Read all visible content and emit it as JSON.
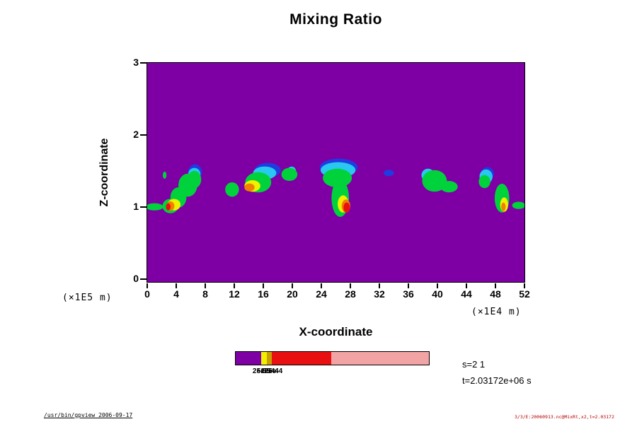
{
  "annotations": {
    "s_label": "s=2 1",
    "t_label": "t=2.03172e+06 s"
  },
  "footer": {
    "left": "/usr/bin/gpview 2006-09-17",
    "right": "3/3/E:20060913.nc@MixRt,x2,t=2.03172"
  },
  "chart_data": {
    "type": "heatmap",
    "title": "Mixing Ratio",
    "xlabel": "X-coordinate",
    "ylabel": "Z-coordinate",
    "x_unit_label": "(×1E4 m)",
    "y_unit_label": "(×1E5 m)",
    "xlim": [
      0,
      52
    ],
    "ylim": [
      0,
      3
    ],
    "x_ticks": [
      0,
      4,
      8,
      12,
      16,
      20,
      24,
      28,
      32,
      36,
      40,
      44,
      48,
      52
    ],
    "y_ticks": [
      0,
      1,
      2,
      3
    ],
    "grid": false,
    "legend_position": "bottom-colorbar",
    "palette": {
      "purple": "#7E00A5",
      "blue": "#1E3CE0",
      "cyan": "#28C8F0",
      "green": "#00D23C",
      "yellow": "#F0F000",
      "olive": "#C8A000",
      "orange": "#F08000",
      "red": "#E81010",
      "pink": "#F2A3A3"
    },
    "colorbar": {
      "segments": [
        {
          "c": "purple",
          "f": 0.131
        },
        {
          "c": "yellow",
          "f": 0.031
        },
        {
          "c": "olive",
          "f": 0.024
        },
        {
          "c": "red",
          "f": 0.309
        },
        {
          "c": "pink",
          "f": 0.505
        }
      ],
      "labels": [
        {
          "text": "2e-5",
          "pos": 0.127
        },
        {
          "text": "5e-5",
          "pos": 0.148
        },
        {
          "text": "1e-4",
          "pos": 0.168
        },
        {
          "text": "2e-4",
          "pos": 0.188
        },
        {
          "text": "5e-4",
          "pos": 0.208
        }
      ]
    },
    "blobs": [
      {
        "x": 1.0,
        "z": 1.0,
        "rx": 1.2,
        "rz": 0.05,
        "c": "green"
      },
      {
        "x": 2.4,
        "z": 1.44,
        "rx": 0.25,
        "rz": 0.05,
        "c": "green"
      },
      {
        "x": 6.6,
        "z": 1.49,
        "rx": 0.95,
        "rz": 0.1,
        "c": "blue"
      },
      {
        "x": 6.5,
        "z": 1.45,
        "rx": 0.85,
        "rz": 0.09,
        "c": "cyan"
      },
      {
        "x": 6.5,
        "z": 1.38,
        "rx": 0.95,
        "rz": 0.12,
        "c": "green"
      },
      {
        "x": 5.6,
        "z": 1.3,
        "rx": 1.3,
        "rz": 0.16,
        "c": "green"
      },
      {
        "x": 4.3,
        "z": 1.13,
        "rx": 1.1,
        "rz": 0.14,
        "c": "green"
      },
      {
        "x": 3.2,
        "z": 1.01,
        "rx": 1.1,
        "rz": 0.1,
        "c": "green"
      },
      {
        "x": 3.7,
        "z": 1.03,
        "rx": 0.9,
        "rz": 0.08,
        "c": "yellow"
      },
      {
        "x": 3.2,
        "z": 1.01,
        "rx": 0.55,
        "rz": 0.065,
        "c": "orange"
      },
      {
        "x": 2.9,
        "z": 1.0,
        "rx": 0.32,
        "rz": 0.05,
        "c": "red"
      },
      {
        "x": 11.7,
        "z": 1.24,
        "rx": 0.95,
        "rz": 0.1,
        "c": "green"
      },
      {
        "x": 16.6,
        "z": 1.51,
        "rx": 1.8,
        "rz": 0.1,
        "c": "blue"
      },
      {
        "x": 16.2,
        "z": 1.47,
        "rx": 1.6,
        "rz": 0.09,
        "c": "cyan"
      },
      {
        "x": 15.3,
        "z": 1.34,
        "rx": 1.8,
        "rz": 0.14,
        "c": "green"
      },
      {
        "x": 14.5,
        "z": 1.29,
        "rx": 1.1,
        "rz": 0.08,
        "c": "yellow"
      },
      {
        "x": 14.1,
        "z": 1.27,
        "rx": 0.7,
        "rz": 0.055,
        "c": "orange"
      },
      {
        "x": 19.9,
        "z": 1.5,
        "rx": 0.6,
        "rz": 0.06,
        "c": "cyan"
      },
      {
        "x": 19.6,
        "z": 1.45,
        "rx": 1.1,
        "rz": 0.09,
        "c": "green"
      },
      {
        "x": 26.4,
        "z": 1.55,
        "rx": 2.6,
        "rz": 0.12,
        "c": "blue"
      },
      {
        "x": 26.3,
        "z": 1.51,
        "rx": 2.4,
        "rz": 0.11,
        "c": "cyan"
      },
      {
        "x": 26.2,
        "z": 1.4,
        "rx": 2.0,
        "rz": 0.13,
        "c": "green"
      },
      {
        "x": 26.6,
        "z": 1.12,
        "rx": 1.2,
        "rz": 0.26,
        "c": "green"
      },
      {
        "x": 27.0,
        "z": 1.04,
        "rx": 0.75,
        "rz": 0.12,
        "c": "yellow"
      },
      {
        "x": 27.4,
        "z": 1.01,
        "rx": 0.6,
        "rz": 0.09,
        "c": "orange"
      },
      {
        "x": 27.5,
        "z": 0.99,
        "rx": 0.45,
        "rz": 0.07,
        "c": "red"
      },
      {
        "x": 33.3,
        "z": 1.47,
        "rx": 0.7,
        "rz": 0.045,
        "c": "blue"
      },
      {
        "x": 38.7,
        "z": 1.44,
        "rx": 0.9,
        "rz": 0.09,
        "c": "cyan"
      },
      {
        "x": 39.6,
        "z": 1.36,
        "rx": 1.7,
        "rz": 0.15,
        "c": "green"
      },
      {
        "x": 41.6,
        "z": 1.28,
        "rx": 1.2,
        "rz": 0.08,
        "c": "green"
      },
      {
        "x": 46.9,
        "z": 1.46,
        "rx": 0.9,
        "rz": 0.09,
        "c": "blue"
      },
      {
        "x": 46.7,
        "z": 1.42,
        "rx": 0.9,
        "rz": 0.1,
        "c": "cyan"
      },
      {
        "x": 46.5,
        "z": 1.35,
        "rx": 0.8,
        "rz": 0.09,
        "c": "green"
      },
      {
        "x": 48.9,
        "z": 1.12,
        "rx": 1.0,
        "rz": 0.2,
        "c": "green"
      },
      {
        "x": 49.2,
        "z": 1.03,
        "rx": 0.55,
        "rz": 0.1,
        "c": "yellow"
      },
      {
        "x": 49.1,
        "z": 1.0,
        "rx": 0.3,
        "rz": 0.06,
        "c": "orange"
      },
      {
        "x": 51.2,
        "z": 1.02,
        "rx": 0.9,
        "rz": 0.05,
        "c": "green"
      }
    ]
  }
}
